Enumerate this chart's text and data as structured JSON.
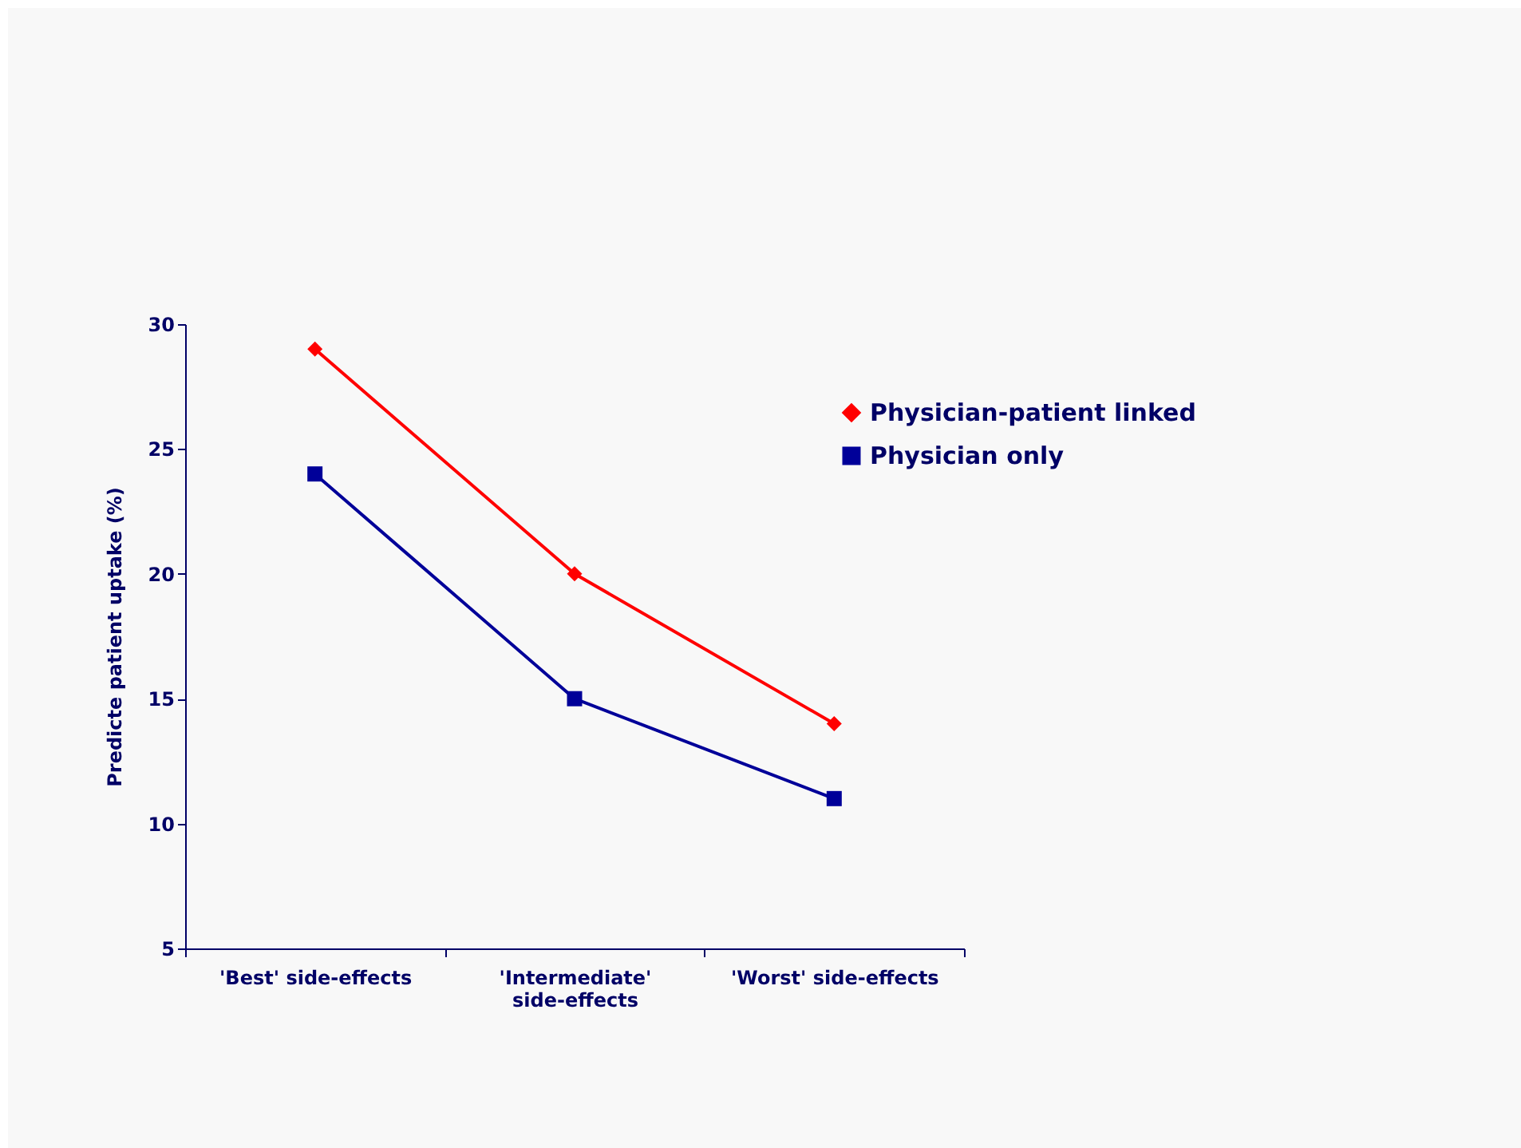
{
  "chart_data": {
    "type": "line",
    "ylabel": "Predicte patient uptake (%)",
    "categories": [
      "'Best' side-effects",
      "'Intermediate' side-effects",
      "'Worst' side-effects"
    ],
    "series": [
      {
        "name": "Physician-patient linked",
        "color": "#ff0000",
        "marker": "diamond",
        "values": [
          29,
          20,
          14
        ]
      },
      {
        "name": "Physician only",
        "color": "#000099",
        "marker": "square",
        "values": [
          24,
          15,
          11
        ]
      }
    ],
    "ylim": [
      5,
      30
    ],
    "yticks": [
      5,
      10,
      15,
      20,
      25,
      30
    ],
    "grid": false,
    "legend": "top right"
  }
}
